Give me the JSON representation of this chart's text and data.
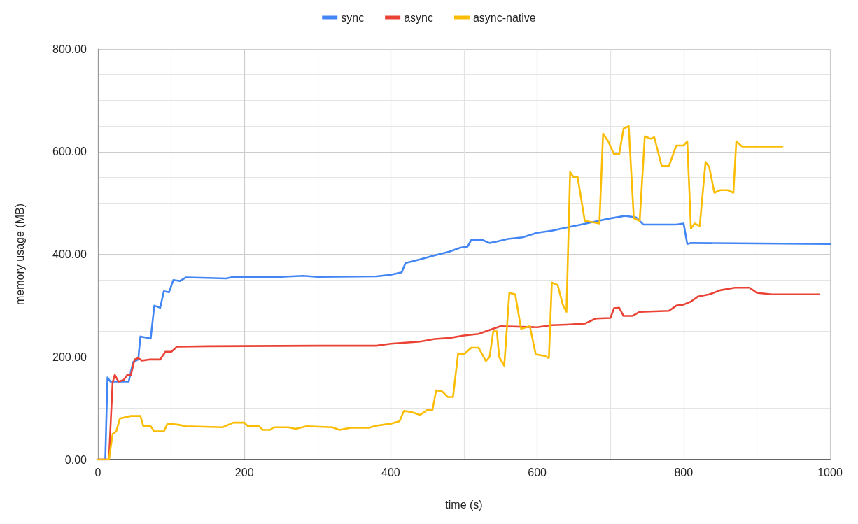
{
  "chart_data": {
    "type": "line",
    "xlabel": "time (s)",
    "ylabel": "memory usage (MB)",
    "xlim": [
      0,
      1000
    ],
    "xticks": [
      0,
      200,
      400,
      600,
      800,
      1000
    ],
    "ylim": [
      0,
      800
    ],
    "yticks": [
      {
        "value": 0,
        "label": "0.00"
      },
      {
        "value": 200,
        "label": "200.00"
      },
      {
        "value": 400,
        "label": "400.00"
      },
      {
        "value": 600,
        "label": "600.00"
      },
      {
        "value": 800,
        "label": "800.00"
      }
    ],
    "grid": true,
    "legend": "top",
    "marker": "none",
    "line_style": "solid",
    "series": [
      {
        "name": "sync",
        "color": "#4285f4",
        "x": [
          0,
          10,
          13,
          17,
          42,
          48,
          55,
          58,
          72,
          77,
          85,
          90,
          97,
          103,
          112,
          120,
          150,
          175,
          185,
          250,
          280,
          300,
          380,
          400,
          415,
          420,
          440,
          460,
          480,
          495,
          505,
          510,
          525,
          535,
          545,
          560,
          580,
          600,
          620,
          640,
          660,
          680,
          700,
          720,
          735,
          745,
          790,
          800,
          805,
          810,
          1000
        ],
        "values": [
          0,
          0,
          160,
          152,
          152,
          190,
          195,
          240,
          236,
          300,
          296,
          328,
          326,
          350,
          348,
          355,
          354,
          353,
          356,
          356,
          358,
          356,
          357,
          360,
          365,
          383,
          390,
          398,
          405,
          413,
          415,
          428,
          428,
          422,
          425,
          430,
          433,
          442,
          446,
          452,
          458,
          464,
          470,
          475,
          472,
          458,
          458,
          460,
          420,
          422,
          420
        ]
      },
      {
        "name": "async",
        "color": "#ea4335",
        "x": [
          0,
          15,
          20,
          23,
          28,
          35,
          40,
          45,
          50,
          55,
          60,
          70,
          85,
          92,
          100,
          108,
          150,
          300,
          380,
          400,
          440,
          460,
          480,
          500,
          520,
          530,
          550,
          600,
          620,
          640,
          665,
          680,
          700,
          705,
          712,
          718,
          730,
          740,
          780,
          790,
          800,
          810,
          820,
          835,
          850,
          870,
          890,
          900,
          920,
          985
        ],
        "values": [
          0,
          0,
          150,
          165,
          152,
          155,
          165,
          165,
          195,
          198,
          193,
          195,
          195,
          210,
          210,
          220,
          221,
          222,
          222,
          226,
          230,
          235,
          237,
          242,
          245,
          250,
          260,
          258,
          262,
          263,
          265,
          275,
          276,
          295,
          296,
          280,
          280,
          288,
          290,
          300,
          302,
          308,
          318,
          322,
          330,
          335,
          335,
          325,
          322,
          322
        ]
      },
      {
        "name": "async-native",
        "color": "#fbbc04",
        "x": [
          0,
          15,
          20,
          25,
          30,
          45,
          58,
          62,
          72,
          77,
          90,
          95,
          110,
          120,
          170,
          185,
          200,
          205,
          220,
          225,
          235,
          240,
          260,
          270,
          285,
          320,
          330,
          345,
          370,
          380,
          400,
          412,
          418,
          430,
          440,
          450,
          457,
          462,
          470,
          478,
          485,
          492,
          500,
          510,
          520,
          530,
          535,
          540,
          545,
          548,
          555,
          562,
          570,
          578,
          590,
          598,
          610,
          616,
          620,
          628,
          635,
          640,
          645,
          650,
          655,
          665,
          678,
          685,
          690,
          697,
          705,
          712,
          718,
          725,
          732,
          740,
          747,
          755,
          760,
          770,
          780,
          790,
          800,
          805,
          810,
          815,
          822,
          830,
          835,
          842,
          850,
          860,
          868,
          872,
          880,
          935
        ],
        "values": [
          0,
          0,
          50,
          55,
          80,
          85,
          85,
          65,
          65,
          55,
          55,
          70,
          68,
          65,
          63,
          72,
          72,
          65,
          65,
          58,
          58,
          63,
          63,
          60,
          65,
          63,
          58,
          62,
          62,
          66,
          70,
          75,
          95,
          92,
          87,
          97,
          97,
          135,
          133,
          122,
          122,
          207,
          205,
          218,
          218,
          192,
          200,
          250,
          250,
          200,
          183,
          325,
          322,
          255,
          260,
          205,
          202,
          198,
          345,
          340,
          302,
          288,
          560,
          550,
          552,
          465,
          462,
          460,
          635,
          620,
          595,
          595,
          645,
          650,
          470,
          465,
          630,
          625,
          628,
          572,
          572,
          612,
          612,
          620,
          450,
          460,
          455,
          580,
          570,
          520,
          525,
          525,
          520,
          620,
          610,
          610
        ]
      }
    ]
  }
}
